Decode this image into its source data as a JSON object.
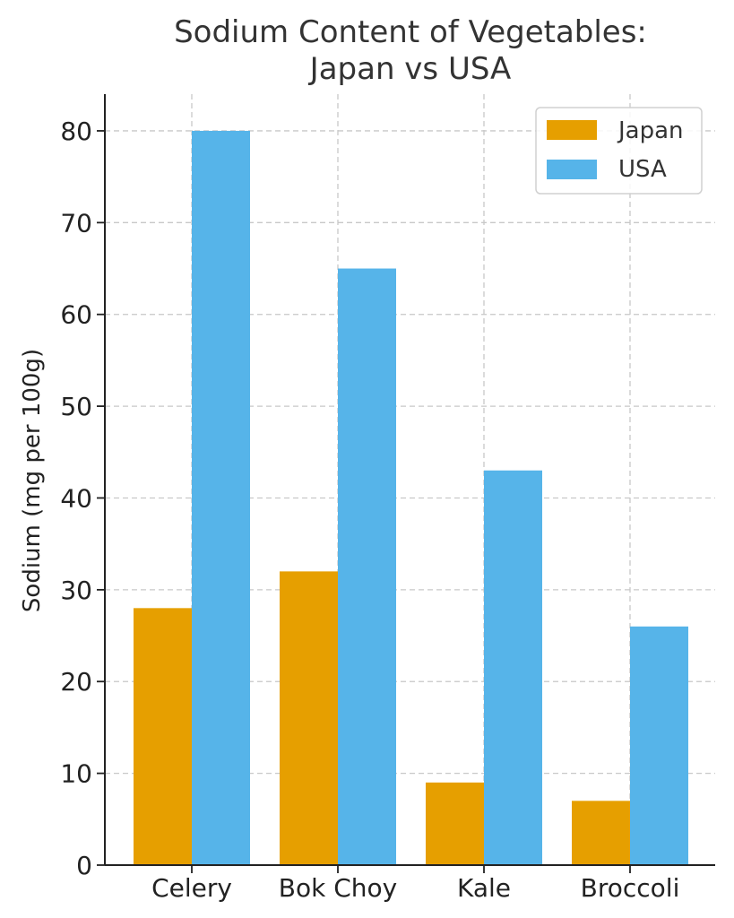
{
  "chart_data": {
    "type": "bar",
    "title": [
      "Sodium Content of Vegetables:",
      "Japan vs USA"
    ],
    "xlabel": "",
    "ylabel": "Sodium (mg per 100g)",
    "categories": [
      "Celery",
      "Bok Choy",
      "Kale",
      "Broccoli"
    ],
    "series": [
      {
        "name": "Japan",
        "color": "#E69F00",
        "values": [
          28,
          32,
          9,
          7
        ]
      },
      {
        "name": "USA",
        "color": "#56B4E9",
        "values": [
          80,
          65,
          43,
          26
        ]
      }
    ],
    "ylim": [
      0,
      84
    ],
    "yticks": [
      0,
      10,
      20,
      30,
      40,
      50,
      60,
      70,
      80
    ],
    "grid": true,
    "legend": "top-right"
  }
}
